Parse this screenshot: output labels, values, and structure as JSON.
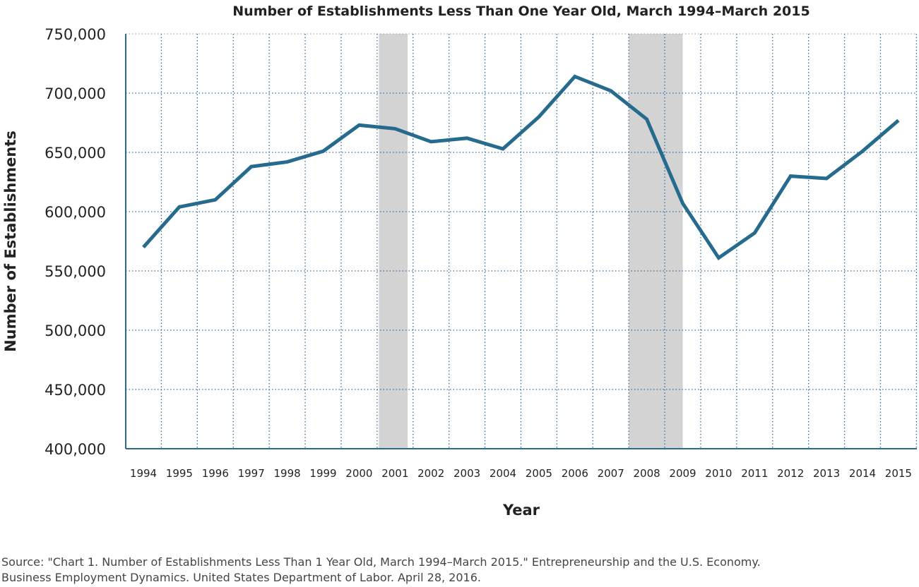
{
  "chart_data": {
    "type": "line",
    "title": "Number of Establishments Less Than One Year Old, March 1994–March 2015",
    "xlabel": "Year",
    "ylabel": "Number of Establishments",
    "x": [
      "1994",
      "1995",
      "1996",
      "1997",
      "1998",
      "1999",
      "2000",
      "2001",
      "2002",
      "2003",
      "2004",
      "2005",
      "2006",
      "2007",
      "2008",
      "2009",
      "2010",
      "2011",
      "2012",
      "2013",
      "2014",
      "2015"
    ],
    "series": [
      {
        "values": [
          570000,
          604000,
          610000,
          638000,
          642000,
          651000,
          673000,
          670000,
          659000,
          662000,
          653000,
          680000,
          714000,
          702000,
          678000,
          607000,
          561000,
          582000,
          630000,
          628000,
          651000,
          677000
        ],
        "color": "#266b8e"
      }
    ],
    "yticks": [
      "400,000",
      "450,000",
      "500,000",
      "550,000",
      "600,000",
      "650,000",
      "700,000",
      "750,000"
    ],
    "ylim": [
      400000,
      750000
    ],
    "grid": true,
    "shaded_periods": [
      [
        2000.55,
        2001.35
      ],
      [
        2007.5,
        2009.0
      ]
    ],
    "shade_color": "#d3d3d3",
    "grid_color": "#2e6da4"
  },
  "source": {
    "line1": "Source: \"Chart 1. Number of Establishments Less Than 1 Year Old, March 1994–March 2015.\" Entrepreneurship and the U.S. Economy.",
    "line2": "Business Employment Dynamics. United States Department of Labor. April 28, 2016."
  }
}
